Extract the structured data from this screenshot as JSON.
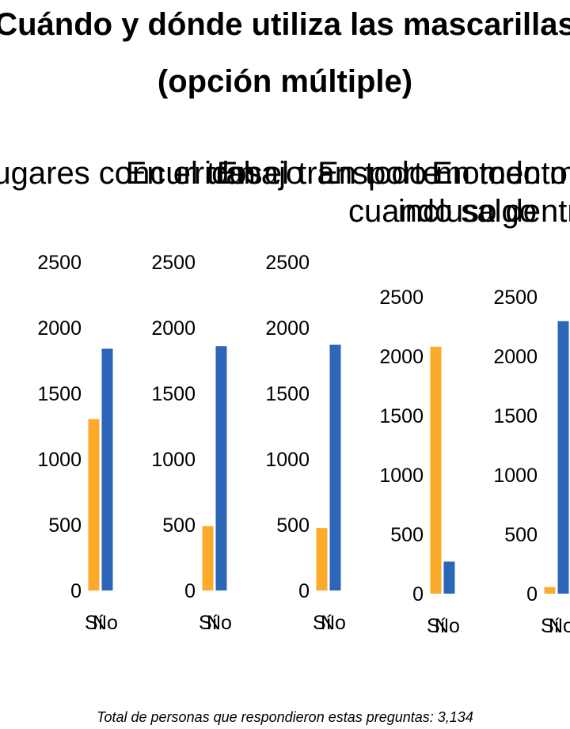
{
  "title_lines": [
    "Cuándo y dónde utiliza las mascarillas",
    "(opción múltiple)"
  ],
  "footnote": "Total de personas que respondieron estas preguntas: 3,134",
  "colors": {
    "si": "#FBAA2A",
    "no": "#2C66B8"
  },
  "chart_data": [
    {
      "type": "bar",
      "title_lines": [
        "En lugares concurridos"
      ],
      "categories": [
        "Sí",
        "No"
      ],
      "values": [
        1305,
        1840
      ],
      "ylim": [
        0,
        2500
      ],
      "yticks": [
        0,
        500,
        1000,
        1500,
        2000,
        2500
      ]
    },
    {
      "type": "bar",
      "title_lines": [
        "En el trabajo"
      ],
      "categories": [
        "Sí",
        "No"
      ],
      "values": [
        490,
        1860
      ],
      "ylim": [
        0,
        2500
      ],
      "yticks": [
        0,
        500,
        1000,
        1500,
        2000,
        2500
      ]
    },
    {
      "type": "bar",
      "title_lines": [
        "En el transporte"
      ],
      "categories": [
        "Sí",
        "No"
      ],
      "values": [
        475,
        1870
      ],
      "ylim": [
        0,
        2500
      ],
      "yticks": [
        0,
        500,
        1000,
        1500,
        2000,
        2500
      ]
    },
    {
      "type": "bar",
      "title_lines": [
        "En todo momento",
        "cuando salgo"
      ],
      "categories": [
        "Sí",
        "No"
      ],
      "values": [
        2080,
        270
      ],
      "ylim": [
        0,
        2500
      ],
      "yticks": [
        0,
        500,
        1000,
        1500,
        2000,
        2500
      ]
    },
    {
      "type": "bar",
      "title_lines": [
        "En todo momento",
        "incluso dentro de casa"
      ],
      "categories": [
        "Sí",
        "No"
      ],
      "values": [
        55,
        2295
      ],
      "ylim": [
        0,
        2500
      ],
      "yticks": [
        0,
        500,
        1000,
        1500,
        2000,
        2500
      ]
    }
  ]
}
